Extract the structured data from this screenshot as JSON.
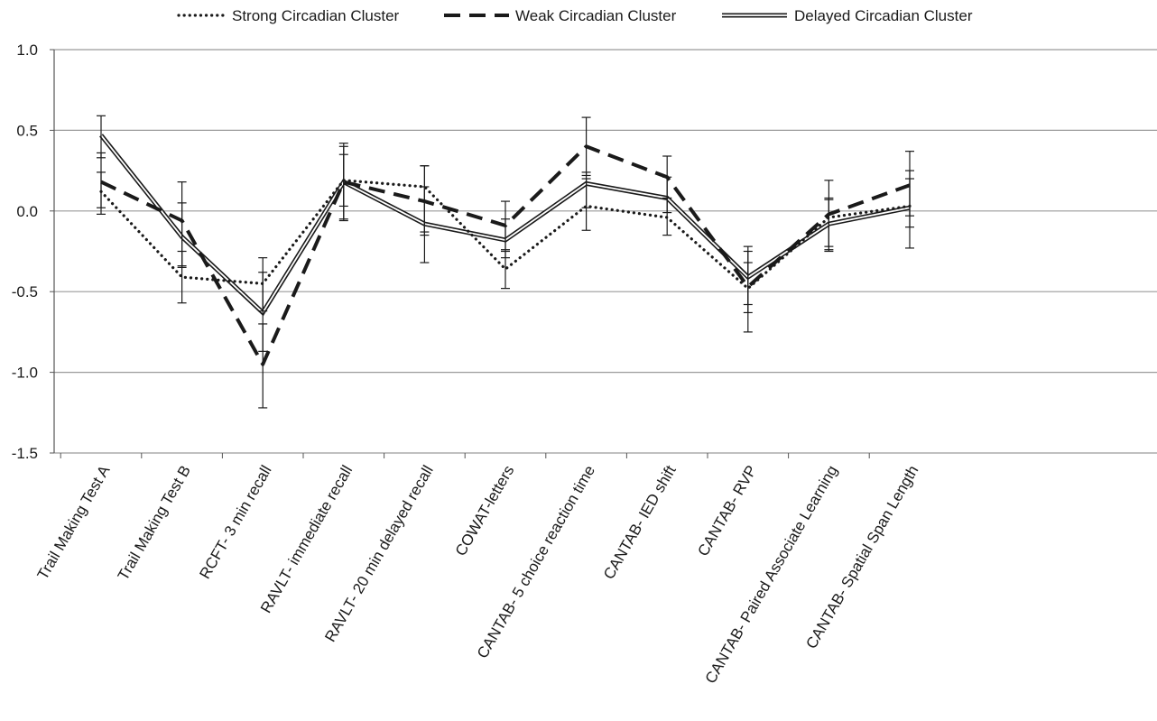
{
  "chart_data": {
    "type": "line",
    "title": "",
    "xlabel": "",
    "ylabel": "",
    "ylim": [
      -1.5,
      1.0
    ],
    "yticks": [
      1.0,
      0.5,
      0.0,
      -0.5,
      -1.0,
      -1.5
    ],
    "ytick_labels": [
      "1.0",
      "0.5",
      "0.0",
      "-0.5",
      "-1.0",
      "-1.5"
    ],
    "grid": "horizontal",
    "legend": "top",
    "categories": [
      "Trail Making Test A",
      "Trail Making Test B",
      "RCFT- 3 min recall",
      "RAVLT- immediate recall",
      "RAVLT- 20 min delayed recall",
      "COWAT-letters",
      "CANTAB- 5 choice reaction time",
      "CANTAB- IED shift",
      "CANTAB- RVP",
      "CANTAB- Paired Associate Learning",
      "CANTAB- Spatial Span Length"
    ],
    "series": [
      {
        "name": "Strong Circadian Cluster",
        "style": "dotted",
        "color": "#1a1a1a",
        "values": [
          0.12,
          -0.41,
          -0.45,
          0.19,
          0.15,
          -0.36,
          0.03,
          -0.04,
          -0.48,
          -0.04,
          0.03
        ],
        "err_low": [
          -0.02,
          -0.57,
          -0.62,
          0.03,
          -0.15,
          -0.48,
          -0.12,
          -0.15,
          -0.63,
          -0.24,
          -0.1
        ],
        "err_high": [
          0.24,
          -0.25,
          -0.29,
          0.35,
          0.28,
          -0.25,
          0.2,
          0.08,
          -0.32,
          0.07,
          0.2
        ]
      },
      {
        "name": "Weak Circadian Cluster",
        "style": "dashed",
        "color": "#1a1a1a",
        "values": [
          0.18,
          -0.06,
          -0.95,
          0.18,
          0.06,
          -0.09,
          0.4,
          0.21,
          -0.47,
          -0.02,
          0.16
        ],
        "err_low": [
          0.02,
          -0.34,
          -1.22,
          -0.05,
          -0.13,
          -0.24,
          0.22,
          0.08,
          -0.75,
          -0.22,
          -0.03
        ],
        "err_high": [
          0.36,
          0.18,
          -0.7,
          0.42,
          0.28,
          0.06,
          0.58,
          0.34,
          -0.22,
          0.19,
          0.37
        ]
      },
      {
        "name": "Delayed Circadian Cluster",
        "style": "double",
        "color": "#1a1a1a",
        "values": [
          0.47,
          -0.16,
          -0.63,
          0.18,
          -0.08,
          -0.18,
          0.17,
          0.08,
          -0.41,
          -0.08,
          0.02
        ],
        "err_low": [
          0.33,
          -0.35,
          -0.87,
          -0.06,
          -0.32,
          -0.29,
          0.02,
          -0.01,
          -0.58,
          -0.25,
          -0.23
        ],
        "err_high": [
          0.59,
          0.05,
          -0.38,
          0.4,
          0.15,
          -0.05,
          0.24,
          0.21,
          -0.25,
          0.08,
          0.25
        ]
      }
    ]
  }
}
